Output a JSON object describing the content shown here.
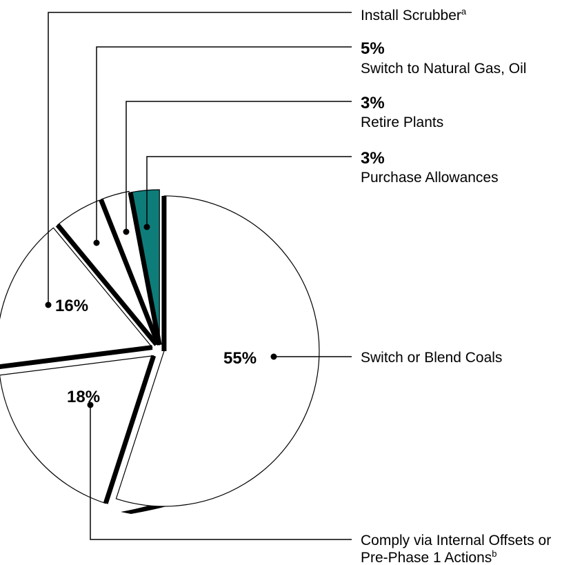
{
  "chart_data": {
    "type": "pie",
    "slices": [
      {
        "label": "Switch or Blend Coals",
        "value": 55,
        "value_label": "55%",
        "fill": "#ffffff"
      },
      {
        "label": "Comply via Internal Offsets or Pre-Phase 1 Actions",
        "value": 18,
        "value_label": "18%",
        "fill": "#ffffff"
      },
      {
        "label": "Install Scrubber",
        "value": 16,
        "value_label": "16%",
        "fill": "#ffffff"
      },
      {
        "label": "Switch to Natural Gas, Oil",
        "value": 5,
        "value_label": "5%",
        "fill": "#ffffff"
      },
      {
        "label": "Retire Plants",
        "value": 3,
        "value_label": "3%",
        "fill": "#ffffff"
      },
      {
        "label": "Purchase Allowances",
        "value": 3,
        "value_label": "3%",
        "fill": "#0e7d7a"
      }
    ],
    "labels": {
      "scrubber": "Install Scrubber",
      "scrubber_sup": "a",
      "gas_pct": "5%",
      "gas": "Switch to Natural Gas, Oil",
      "retire_pct": "3%",
      "retire": "Retire Plants",
      "allow_pct": "3%",
      "allow": "Purchase Allowances",
      "scrubber_pct": "16%",
      "coal_pct": "55%",
      "coal": "Switch or Blend Coals",
      "offsets_pct": "18%",
      "offsets_line1": "Comply via Internal Offsets or",
      "offsets_line2": "Pre-Phase 1 Actions",
      "offsets_sup": "b"
    },
    "colors": {
      "accent": "#0e7d7a",
      "outline": "#000000",
      "shadow": "#000000"
    }
  }
}
